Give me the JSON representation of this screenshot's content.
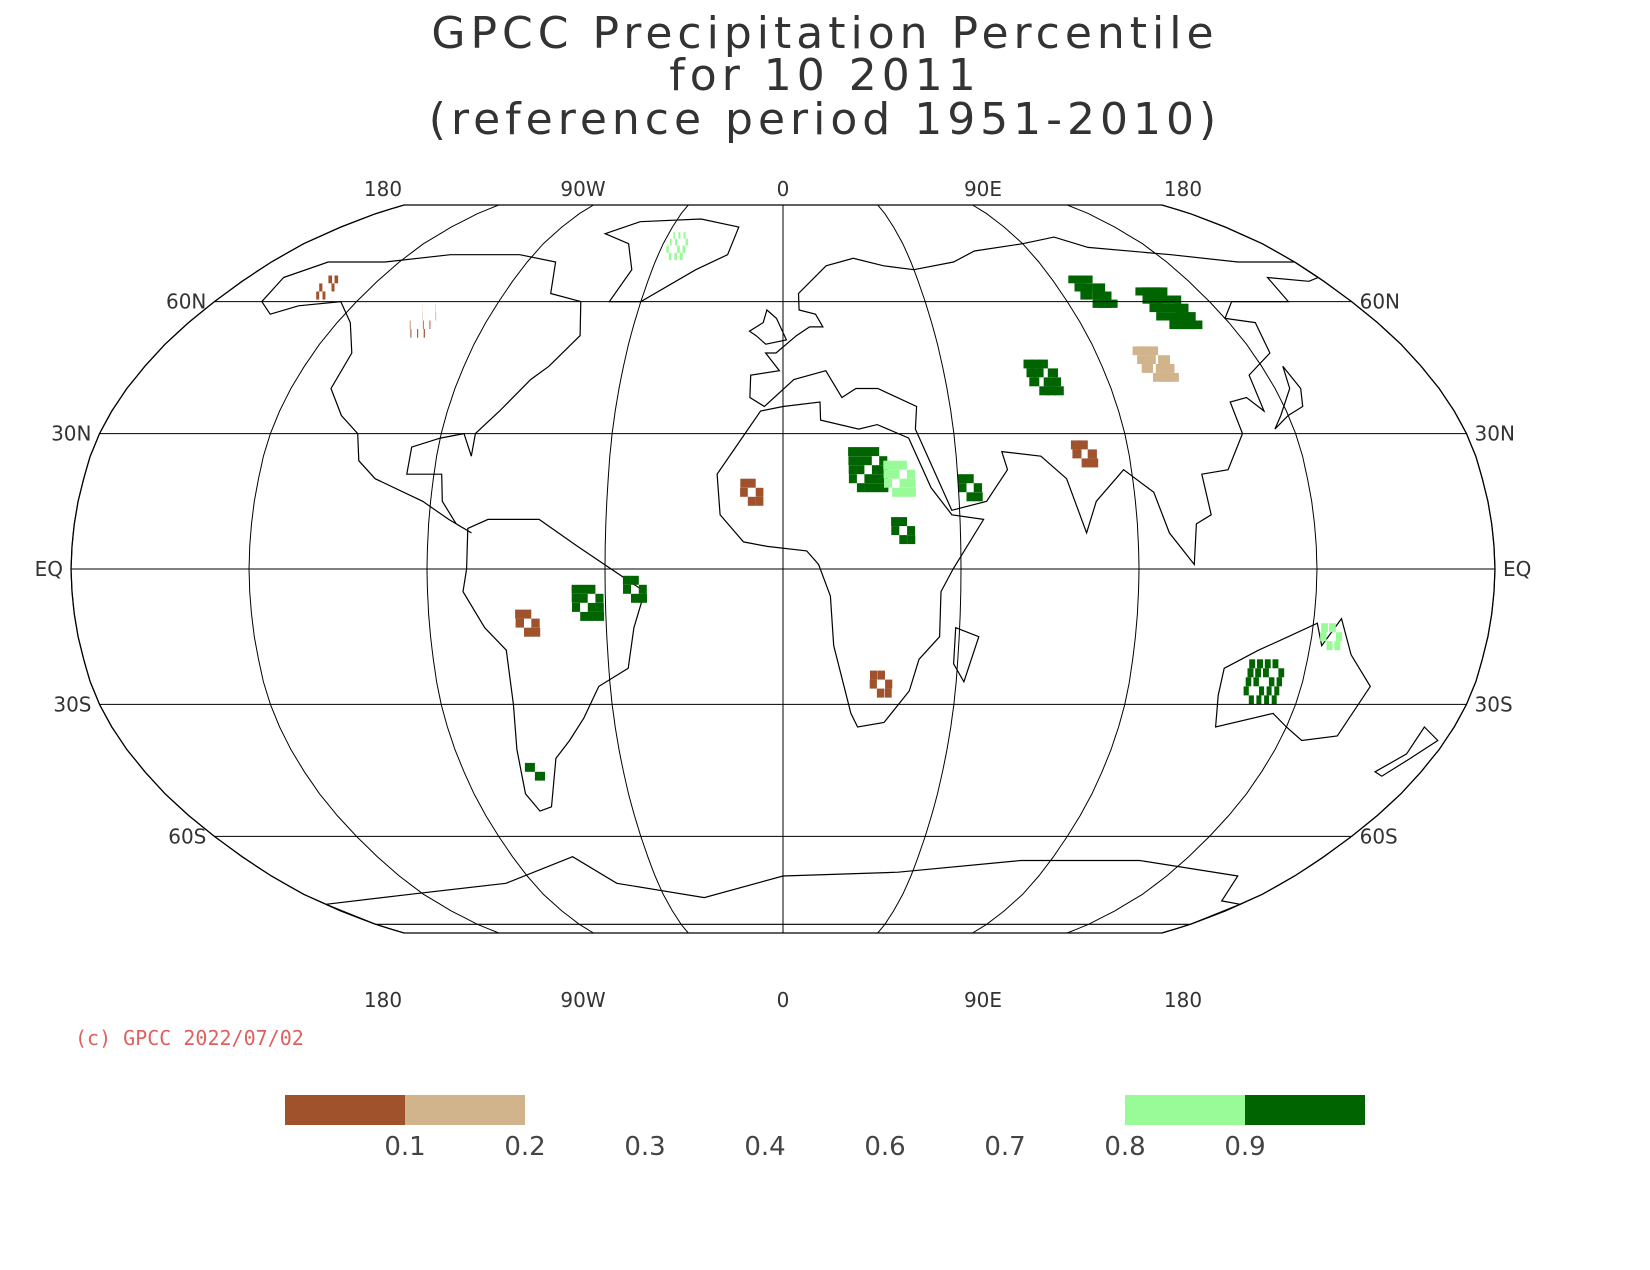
{
  "title": {
    "line1": "GPCC Precipitation Percentile",
    "line2": "for 10 2011",
    "line3": "(reference period 1951-2010)"
  },
  "longitude_labels_top": [
    "180",
    "90W",
    "0",
    "90E",
    "180"
  ],
  "longitude_labels_bottom": [
    "180",
    "90W",
    "0",
    "90E",
    "180"
  ],
  "latitude_labels": [
    "60N",
    "30N",
    "EQ",
    "30S",
    "60S"
  ],
  "copyright": "(c) GPCC 2022/07/02",
  "legend": {
    "ticks": [
      "0.1",
      "0.2",
      "0.3",
      "0.4",
      "0.6",
      "0.7",
      "0.8",
      "0.9"
    ],
    "classes": [
      {
        "range": "< 0.1",
        "color": "#a0522d"
      },
      {
        "range": "0.1 - 0.2",
        "color": "#d2b48c"
      },
      {
        "range": "0.8 - 0.9",
        "color": "#98fb98"
      },
      {
        "range": "> 0.9",
        "color": "#006400"
      }
    ]
  },
  "colors": {
    "very_dry": "#a0522d",
    "dry": "#d2b48c",
    "wet": "#98fb98",
    "very_wet": "#006400",
    "coastline": "#000000",
    "copyright": "#e06060"
  },
  "map": {
    "projection": "Robinson",
    "graticule_longitudes": [
      -180,
      -135,
      -90,
      -45,
      0,
      45,
      90,
      135,
      180
    ],
    "graticule_latitudes": [
      60,
      30,
      0,
      -30,
      -60
    ],
    "percentile_patches": [
      {
        "class": "very_wet",
        "lon": 22,
        "lat": 22,
        "size": 10,
        "region": "Libya/Chad"
      },
      {
        "class": "wet",
        "lon": 30,
        "lat": 20,
        "size": 8,
        "region": "Egypt/Sudan"
      },
      {
        "class": "very_wet",
        "lon": 48,
        "lat": 18,
        "size": 6,
        "region": "Arabian Peninsula"
      },
      {
        "class": "very_wet",
        "lon": 72,
        "lat": 42,
        "size": 7,
        "region": "Central Asia"
      },
      {
        "class": "very_wet",
        "lon": 120,
        "lat": 58,
        "size": 9,
        "region": "Siberia"
      },
      {
        "class": "very_wet",
        "lon": 100,
        "lat": 62,
        "size": 7,
        "region": "Central Siberia"
      },
      {
        "class": "very_wet",
        "lon": 125,
        "lat": -25,
        "size": 10,
        "region": "Western Australia"
      },
      {
        "class": "very_wet",
        "lon": -50,
        "lat": -8,
        "size": 7,
        "region": "Brazil"
      },
      {
        "class": "very_wet",
        "lon": -38,
        "lat": -5,
        "size": 5,
        "region": "NE Brazil"
      },
      {
        "class": "very_wet",
        "lon": -70,
        "lat": -45,
        "size": 4,
        "region": "Patagonia"
      },
      {
        "class": "very_dry",
        "lon": 25,
        "lat": -26,
        "size": 5,
        "region": "Southern Africa"
      },
      {
        "class": "very_dry",
        "lon": -65,
        "lat": -12,
        "size": 6,
        "region": "Bolivia/Peru"
      },
      {
        "class": "very_dry",
        "lon": -110,
        "lat": 55,
        "size": 7,
        "region": "Western Canada"
      },
      {
        "class": "very_dry",
        "lon": -150,
        "lat": 63,
        "size": 5,
        "region": "Alaska"
      },
      {
        "class": "very_dry",
        "lon": 78,
        "lat": 25,
        "size": 5,
        "region": "India"
      },
      {
        "class": "very_dry",
        "lon": -8,
        "lat": 17,
        "size": 6,
        "region": "West Africa"
      },
      {
        "class": "dry",
        "lon": 105,
        "lat": 45,
        "size": 7,
        "region": "Mongolia"
      },
      {
        "class": "wet",
        "lon": -40,
        "lat": 74,
        "size": 7,
        "region": "Greenland"
      },
      {
        "class": "very_wet",
        "lon": 30,
        "lat": 8,
        "size": 5,
        "region": "East Africa"
      },
      {
        "class": "wet",
        "lon": 140,
        "lat": -15,
        "size": 6,
        "region": "Northern Australia"
      }
    ]
  }
}
